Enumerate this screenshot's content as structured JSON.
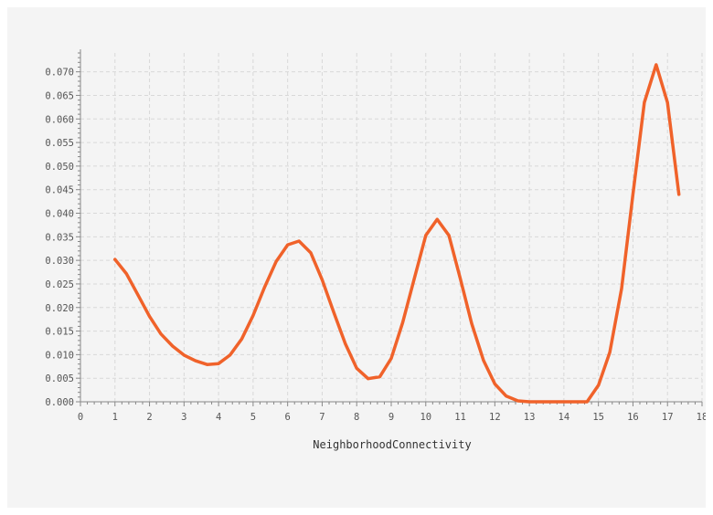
{
  "chart_data": {
    "type": "line",
    "title": "",
    "xlabel": "NeighborhoodConnectivity",
    "ylabel": "",
    "xlim": [
      0,
      18
    ],
    "ylim": [
      0,
      0.074
    ],
    "xticks": [
      0,
      1,
      2,
      3,
      4,
      5,
      6,
      7,
      8,
      9,
      10,
      11,
      12,
      13,
      14,
      15,
      16,
      17,
      18
    ],
    "yticks": [
      0.0,
      0.005,
      0.01,
      0.015,
      0.02,
      0.025,
      0.03,
      0.035,
      0.04,
      0.045,
      0.05,
      0.055,
      0.06,
      0.065,
      0.07
    ],
    "ytick_labels": [
      "0.000",
      "0.005",
      "0.010",
      "0.015",
      "0.020",
      "0.025",
      "0.030",
      "0.035",
      "0.040",
      "0.045",
      "0.050",
      "0.055",
      "0.060",
      "0.065",
      "0.070"
    ],
    "grid": true,
    "color": "#f0622a",
    "series": [
      {
        "name": "",
        "x": [
          1.0,
          1.33,
          1.67,
          2.0,
          2.33,
          2.67,
          3.0,
          3.33,
          3.67,
          4.0,
          4.33,
          4.67,
          5.0,
          5.33,
          5.67,
          6.0,
          6.33,
          6.67,
          7.0,
          7.33,
          7.67,
          8.0,
          8.33,
          8.67,
          9.0,
          9.33,
          9.67,
          10.0,
          10.33,
          10.67,
          11.0,
          11.33,
          11.67,
          12.0,
          12.33,
          12.67,
          13.0,
          13.33,
          13.67,
          14.0,
          14.33,
          14.67,
          15.0,
          15.33,
          15.67,
          16.0,
          16.33,
          16.67,
          17.0,
          17.33
        ],
        "y": [
          0.0302,
          0.0272,
          0.0226,
          0.0181,
          0.0144,
          0.0118,
          0.0099,
          0.0087,
          0.0079,
          0.0081,
          0.0099,
          0.0133,
          0.0183,
          0.0243,
          0.0298,
          0.0333,
          0.0341,
          0.0316,
          0.0259,
          0.0191,
          0.0123,
          0.0071,
          0.0049,
          0.0053,
          0.0092,
          0.0168,
          0.0262,
          0.0353,
          0.0387,
          0.0353,
          0.0261,
          0.0166,
          0.0088,
          0.0038,
          0.0012,
          0.0002,
          0.0,
          0.0,
          0.0,
          0.0,
          0.0,
          0.0,
          0.0035,
          0.0105,
          0.024,
          0.044,
          0.0635,
          0.0715,
          0.0635,
          0.044
        ]
      }
    ]
  }
}
